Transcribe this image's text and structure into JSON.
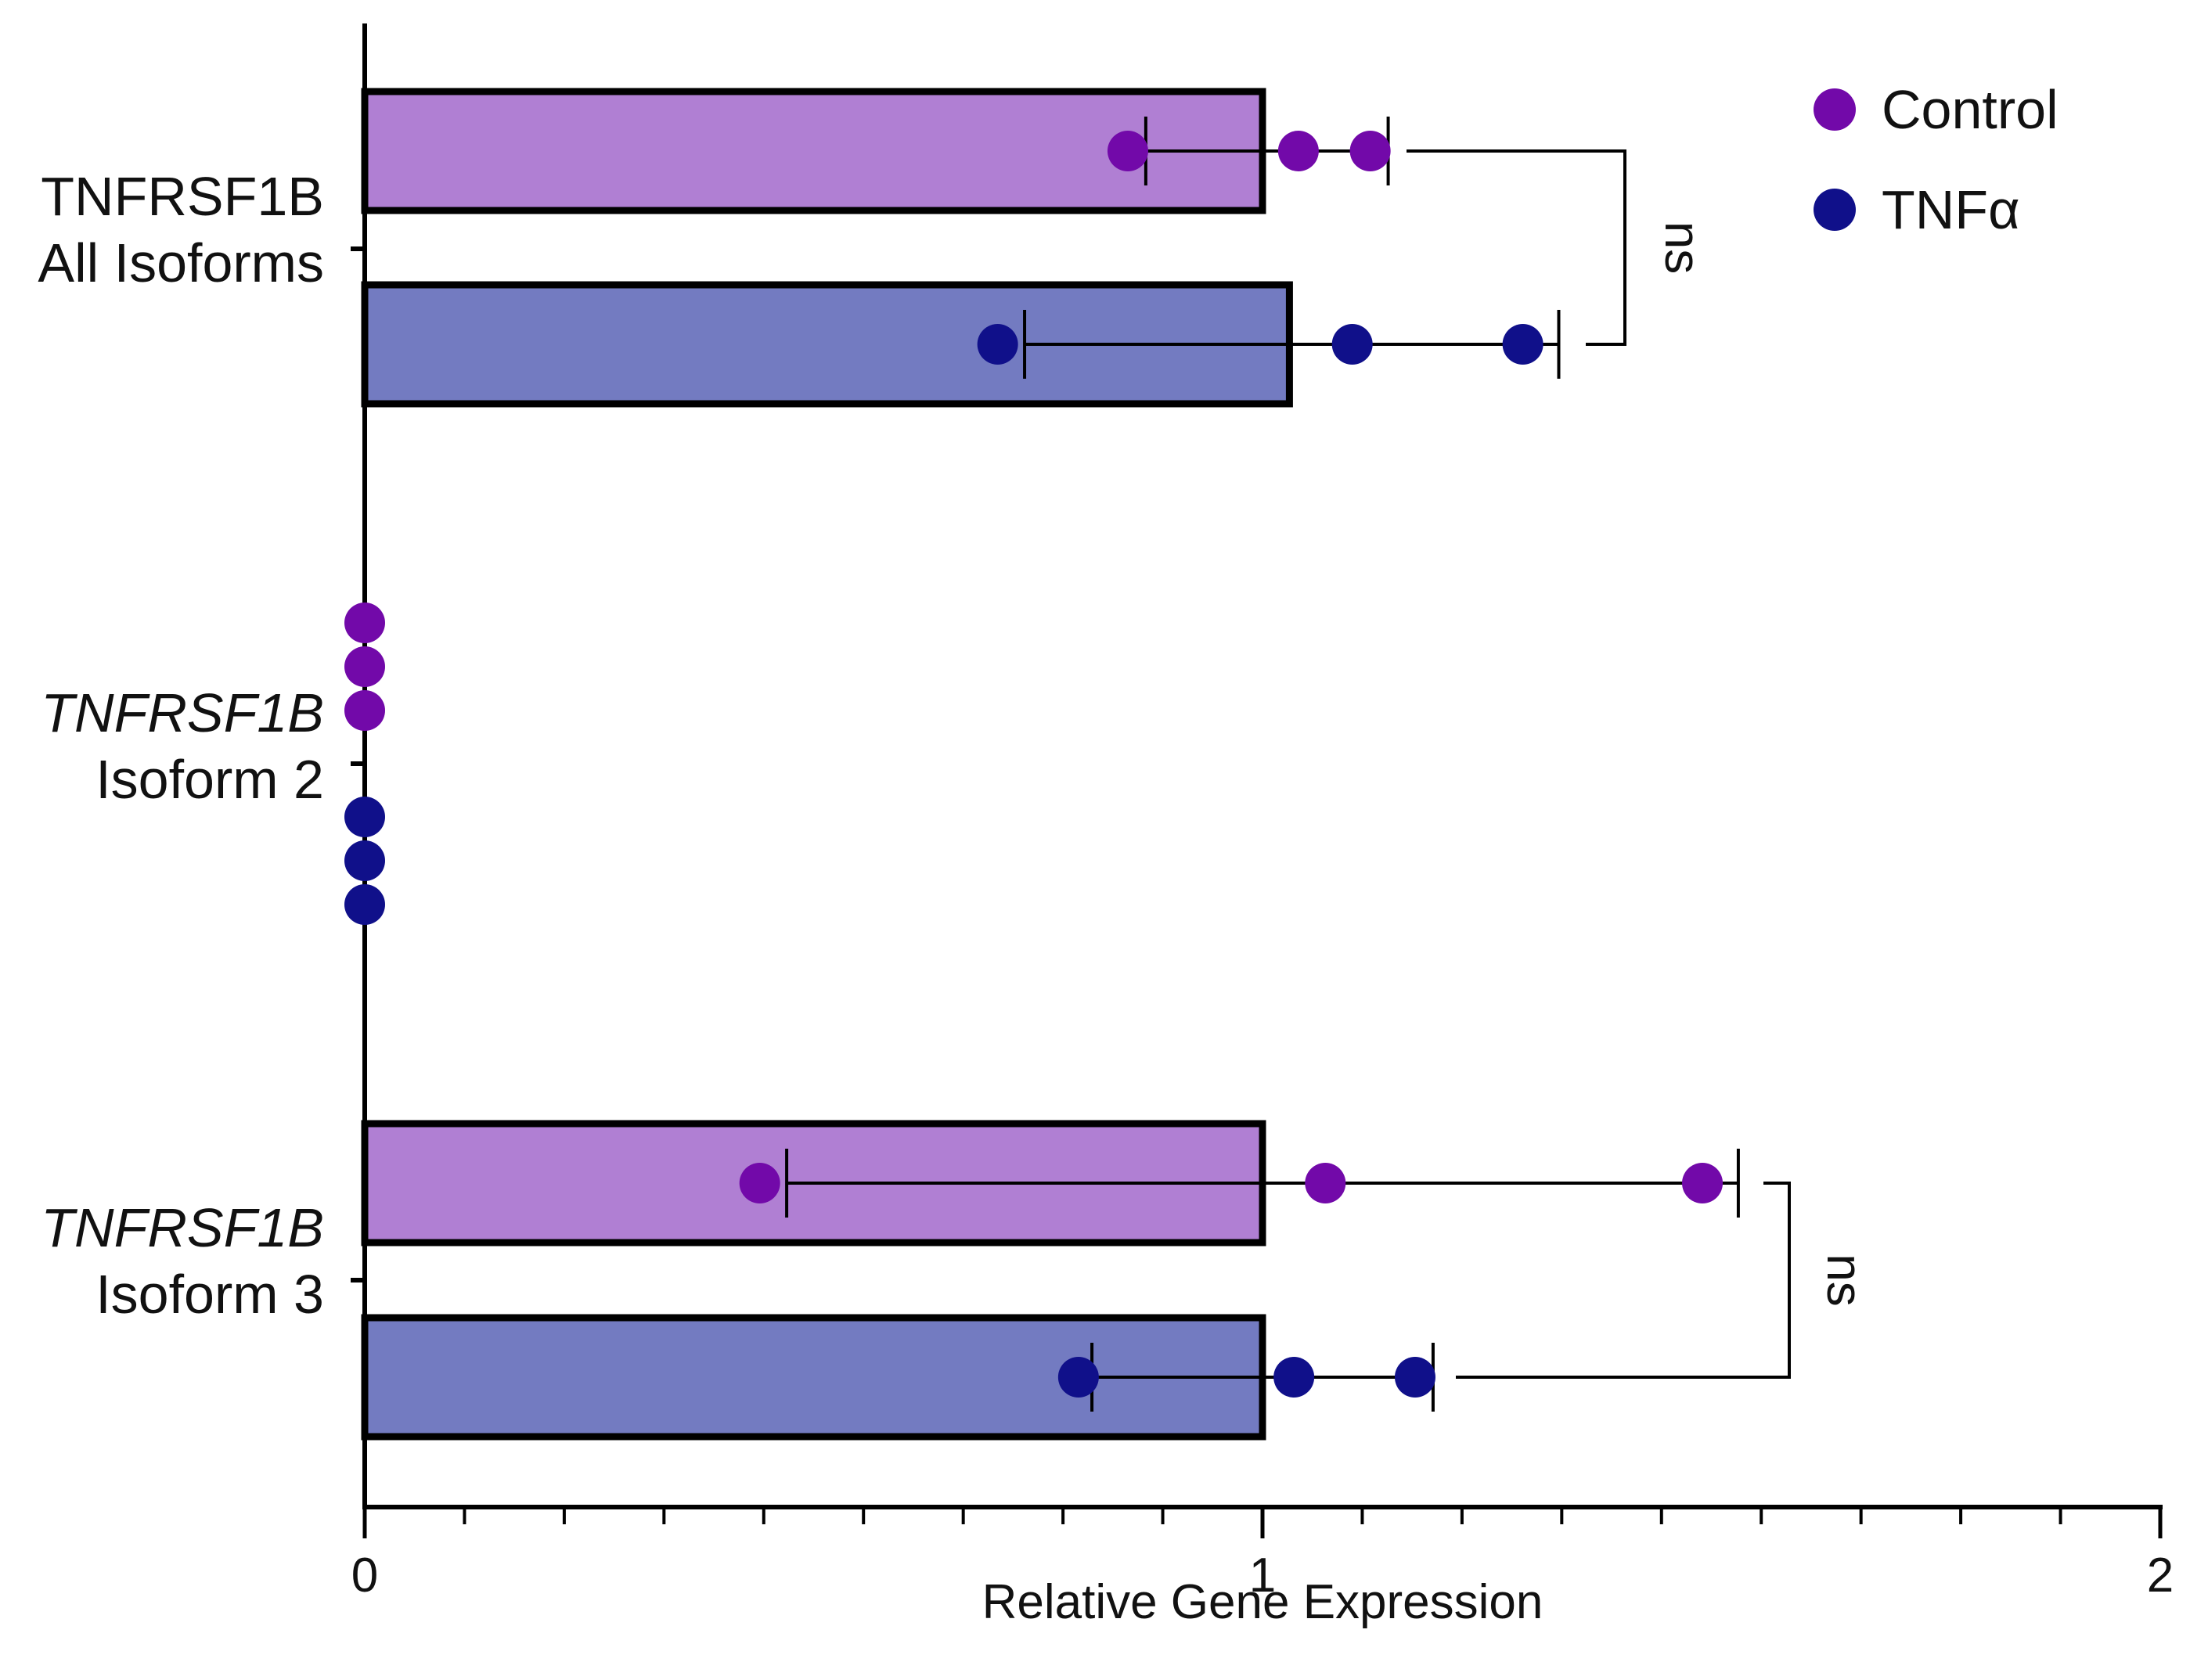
{
  "chart_data": {
    "type": "bar",
    "orientation": "horizontal",
    "xlabel": "Relative Gene Expression",
    "xlim": [
      0,
      2
    ],
    "x_major_ticks": [
      0,
      1,
      2
    ],
    "x_tick_labels": [
      "0",
      "1",
      "2"
    ],
    "x_minor_tick_step": 0.111111,
    "categories": [
      {
        "id": "all",
        "line1": "TNFRSF1B",
        "line2": "All Isoforms",
        "italic_line1": false,
        "significance": "ns"
      },
      {
        "id": "iso2",
        "line1": "TNFRSF1B",
        "line2": "Isoform 2",
        "italic_line1": true,
        "significance": null
      },
      {
        "id": "iso3",
        "line1": "TNFRSF1B",
        "line2": "Isoform 3",
        "italic_line1": true,
        "significance": "ns"
      }
    ],
    "series": [
      {
        "name": "Control",
        "bar_color": "#b07fd3",
        "point_color": "#7209a9",
        "values": [
          1.0,
          0.0,
          1.0
        ],
        "error_low": [
          0.87,
          0.0,
          0.47
        ],
        "error_high": [
          1.14,
          0.0,
          1.53
        ],
        "points": [
          [
            0.85,
            1.04,
            1.12
          ],
          [
            0.0,
            0.0,
            0.0
          ],
          [
            0.44,
            1.07,
            1.49
          ]
        ]
      },
      {
        "name": "TNFα",
        "bar_color": "#737bc1",
        "point_color": "#10108a",
        "values": [
          1.03,
          0.0,
          1.0
        ],
        "error_low": [
          0.735,
          0.0,
          0.81
        ],
        "error_high": [
          1.33,
          0.0,
          1.19
        ],
        "points": [
          [
            0.705,
            1.1,
            1.29
          ],
          [
            0.0,
            0.0,
            0.0
          ],
          [
            0.795,
            1.035,
            1.17
          ]
        ]
      }
    ],
    "legend": {
      "position": "top-right",
      "entries": [
        "Control",
        "TNFα"
      ]
    },
    "grid": false
  }
}
